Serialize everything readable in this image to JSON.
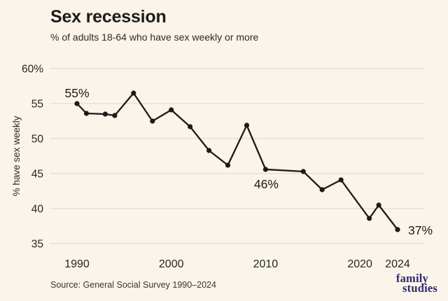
{
  "header": {
    "title": "Sex recession",
    "subtitle": "% of adults 18-64 who have sex weekly or more"
  },
  "chart_data": {
    "type": "line",
    "title": "Sex recession",
    "subtitle": "% of adults 18-64 who have sex weekly or more",
    "xlabel": "",
    "ylabel": "% have sex weekly",
    "x": [
      1990,
      1991,
      1993,
      1994,
      1996,
      1998,
      2000,
      2002,
      2004,
      2006,
      2008,
      2010,
      2014,
      2016,
      2018,
      2021,
      2022,
      2024
    ],
    "series": [
      {
        "name": "% have sex weekly",
        "values": [
          55.0,
          53.6,
          53.5,
          53.3,
          56.5,
          52.5,
          54.1,
          51.7,
          48.3,
          46.2,
          51.9,
          45.6,
          45.3,
          42.7,
          44.1,
          38.6,
          40.5,
          37.0
        ]
      }
    ],
    "y_ticks": {
      "values": [
        60,
        55,
        50,
        45,
        40,
        35
      ],
      "labels": [
        "60%",
        "55",
        "50",
        "45",
        "40",
        "35"
      ]
    },
    "x_ticks": {
      "values": [
        1990,
        2000,
        2010,
        2020,
        2024
      ],
      "labels": [
        "1990",
        "2000",
        "2010",
        "2020",
        "2024"
      ]
    },
    "ylim": [
      35,
      60
    ],
    "xlim": [
      1987,
      2027
    ],
    "grid": "horizontal",
    "legend": "none",
    "annotations": [
      {
        "label": "55%",
        "year": 1990,
        "value": 55.0,
        "position": "above"
      },
      {
        "label": "46%",
        "year": 2010,
        "value": 45.6,
        "position": "below"
      },
      {
        "label": "37%",
        "year": 2024,
        "value": 37.0,
        "position": "right"
      }
    ]
  },
  "footer": {
    "source": "Source: General Social Survey 1990–2024",
    "logo_line1": "family",
    "logo_line2": "studies"
  },
  "colors": {
    "background": "#faf4ea",
    "gridline": "#e6e1d8",
    "line": "#1b1b1b",
    "tick_text": "#262626",
    "annotation_text": "#1c1c1c",
    "logo": "#2f2b6e"
  }
}
